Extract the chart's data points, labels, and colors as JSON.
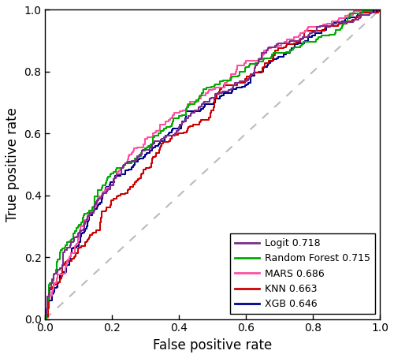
{
  "title": "",
  "xlabel": "False positive rate",
  "ylabel": "True positive rate",
  "xlim": [
    0.0,
    1.0
  ],
  "ylim": [
    0.0,
    1.0
  ],
  "xticks": [
    0.0,
    0.2,
    0.4,
    0.6,
    0.8,
    1.0
  ],
  "yticks": [
    0.0,
    0.2,
    0.4,
    0.6,
    0.8,
    1.0
  ],
  "legend_labels": [
    "Logit 0.718",
    "Random Forest 0.715",
    "MARS 0.686",
    "KNN 0.663",
    "XGB 0.646"
  ],
  "legend_colors": [
    "#7B2D8B",
    "#00AA00",
    "#FF50A0",
    "#CC0000",
    "#00008B"
  ],
  "line_widths": [
    1.5,
    1.5,
    1.5,
    1.5,
    1.5
  ],
  "diag_color": "#BBBBBB",
  "background_color": "#FFFFFF",
  "auc_logit": 0.718,
  "auc_rf": 0.715,
  "auc_mars": 0.686,
  "auc_knn": 0.663,
  "auc_xgb": 0.646,
  "figsize": [
    5.0,
    4.54
  ],
  "dpi": 100
}
